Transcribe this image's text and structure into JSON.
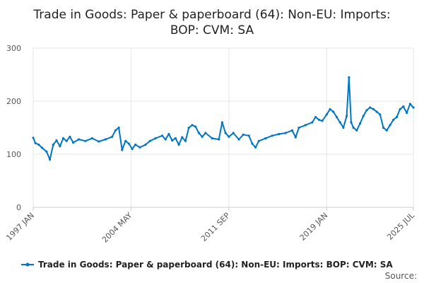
{
  "chart_data": {
    "type": "line",
    "title_lines": [
      "Trade in Goods: Paper & paperboard (64): Non-EU: Imports:",
      "BOP: CVM: SA"
    ],
    "xlabel": "",
    "ylabel": "",
    "ylim": [
      0,
      300
    ],
    "yticks": [
      0,
      100,
      200,
      300
    ],
    "xlim": [
      "1997-01",
      "2025-07"
    ],
    "xticks": [
      "1997 JAN",
      "2004 MAY",
      "2011 SEP",
      "2019 JAN",
      "2025 JUL"
    ],
    "grid": true,
    "legend_position": "bottom",
    "source_label": "Source:",
    "series": [
      {
        "name": "Trade in Goods: Paper & paperboard (64): Non-EU: Imports: BOP: CVM: SA",
        "color": "#0075c2",
        "points": [
          [
            "1997-01",
            131
          ],
          [
            "1997-03",
            121
          ],
          [
            "1997-06",
            118
          ],
          [
            "1997-09",
            112
          ],
          [
            "1998-01",
            105
          ],
          [
            "1998-04",
            90
          ],
          [
            "1998-07",
            118
          ],
          [
            "1998-10",
            126
          ],
          [
            "1999-01",
            115
          ],
          [
            "1999-04",
            130
          ],
          [
            "1999-07",
            125
          ],
          [
            "1999-10",
            133
          ],
          [
            "2000-01",
            122
          ],
          [
            "2000-06",
            128
          ],
          [
            "2000-12",
            125
          ],
          [
            "2001-06",
            130
          ],
          [
            "2001-12",
            124
          ],
          [
            "2002-06",
            128
          ],
          [
            "2002-12",
            133
          ],
          [
            "2003-03",
            145
          ],
          [
            "2003-06",
            150
          ],
          [
            "2003-09",
            108
          ],
          [
            "2003-12",
            125
          ],
          [
            "2004-03",
            120
          ],
          [
            "2004-06",
            110
          ],
          [
            "2004-09",
            118
          ],
          [
            "2005-01",
            113
          ],
          [
            "2005-06",
            118
          ],
          [
            "2005-10",
            125
          ],
          [
            "2006-03",
            130
          ],
          [
            "2006-09",
            135
          ],
          [
            "2006-12",
            128
          ],
          [
            "2007-03",
            138
          ],
          [
            "2007-06",
            126
          ],
          [
            "2007-09",
            130
          ],
          [
            "2007-12",
            118
          ],
          [
            "2008-03",
            132
          ],
          [
            "2008-06",
            125
          ],
          [
            "2008-09",
            150
          ],
          [
            "2008-12",
            155
          ],
          [
            "2009-03",
            152
          ],
          [
            "2009-06",
            140
          ],
          [
            "2009-09",
            133
          ],
          [
            "2009-12",
            140
          ],
          [
            "2010-06",
            130
          ],
          [
            "2010-12",
            128
          ],
          [
            "2011-03",
            160
          ],
          [
            "2011-06",
            140
          ],
          [
            "2011-09",
            133
          ],
          [
            "2012-01",
            140
          ],
          [
            "2012-06",
            128
          ],
          [
            "2012-10",
            137
          ],
          [
            "2013-03",
            135
          ],
          [
            "2013-06",
            120
          ],
          [
            "2013-09",
            113
          ],
          [
            "2013-12",
            125
          ],
          [
            "2014-06",
            130
          ],
          [
            "2014-12",
            135
          ],
          [
            "2015-06",
            138
          ],
          [
            "2015-12",
            140
          ],
          [
            "2016-06",
            145
          ],
          [
            "2016-09",
            132
          ],
          [
            "2016-12",
            150
          ],
          [
            "2017-06",
            155
          ],
          [
            "2017-12",
            160
          ],
          [
            "2018-03",
            170
          ],
          [
            "2018-06",
            165
          ],
          [
            "2018-09",
            163
          ],
          [
            "2019-01",
            175
          ],
          [
            "2019-04",
            185
          ],
          [
            "2019-07",
            180
          ],
          [
            "2019-10",
            170
          ],
          [
            "2020-01",
            160
          ],
          [
            "2020-04",
            150
          ],
          [
            "2020-07",
            172
          ],
          [
            "2020-09",
            245
          ],
          [
            "2020-11",
            160
          ],
          [
            "2021-01",
            150
          ],
          [
            "2021-04",
            145
          ],
          [
            "2021-07",
            158
          ],
          [
            "2021-10",
            172
          ],
          [
            "2022-01",
            183
          ],
          [
            "2022-04",
            188
          ],
          [
            "2022-07",
            185
          ],
          [
            "2022-10",
            180
          ],
          [
            "2023-01",
            175
          ],
          [
            "2023-04",
            150
          ],
          [
            "2023-07",
            145
          ],
          [
            "2023-10",
            155
          ],
          [
            "2024-01",
            165
          ],
          [
            "2024-04",
            170
          ],
          [
            "2024-07",
            185
          ],
          [
            "2024-10",
            190
          ],
          [
            "2025-01",
            178
          ],
          [
            "2025-04",
            195
          ],
          [
            "2025-07",
            188
          ]
        ]
      }
    ]
  }
}
